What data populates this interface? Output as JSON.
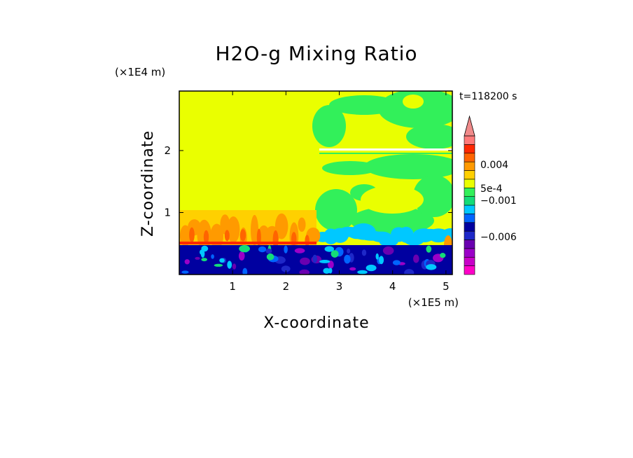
{
  "chart_data": {
    "type": "heatmap",
    "title": "H2O-g Mixing Ratio",
    "xlabel": "X-coordinate",
    "ylabel": "Z-coordinate",
    "x_unit_label": "(×1E5 m)",
    "y_unit_label": "(×1E4 m)",
    "time_label": "t=118200 s",
    "xlim": [
      0,
      5.12
    ],
    "ylim": [
      0,
      2.96
    ],
    "x_ticks": [
      1,
      2,
      3,
      4,
      5
    ],
    "y_ticks": [
      1,
      2
    ],
    "x_tick_labels": [
      "1",
      "2",
      "3",
      "4",
      "5"
    ],
    "y_tick_labels": [
      "1",
      "2"
    ],
    "colorbar": {
      "labels": [
        {
          "value": 0.004,
          "text": "0.004"
        },
        {
          "value": 0.0005,
          "text": "5e-4"
        },
        {
          "value": -0.001,
          "text": "−0.001"
        },
        {
          "value": -0.006,
          "text": "−0.006"
        }
      ],
      "levels": [
        {
          "color": "#ff00c8",
          "from": -0.009,
          "to": -0.008
        },
        {
          "color": "#c800c8",
          "from": -0.008,
          "to": -0.007
        },
        {
          "color": "#9b00c8",
          "from": -0.007,
          "to": -0.006
        },
        {
          "color": "#6a00b0",
          "from": -0.006,
          "to": -0.005
        },
        {
          "color": "#1e28c8",
          "from": -0.005,
          "to": -0.003
        },
        {
          "color": "#0000a0",
          "from": -0.003,
          "to": -0.002
        },
        {
          "color": "#0064ff",
          "from": -0.002,
          "to": -0.001
        },
        {
          "color": "#00c8ff",
          "from": -0.001,
          "to": -0.0005
        },
        {
          "color": "#14dc78",
          "from": -0.0005,
          "to": 0.0
        },
        {
          "color": "#32f05a",
          "from": 0.0,
          "to": 0.0003
        },
        {
          "color": "#eaff00",
          "from": 0.0003,
          "to": 0.0005
        },
        {
          "color": "#ffd000",
          "from": 0.0005,
          "to": 0.001
        },
        {
          "color": "#ff9a00",
          "from": 0.001,
          "to": 0.003
        },
        {
          "color": "#ff6400",
          "from": 0.003,
          "to": 0.005
        },
        {
          "color": "#ff2800",
          "from": 0.005,
          "to": 0.007
        },
        {
          "color": "#ff7a7a",
          "from": 0.007,
          "to": 0.009
        },
        {
          "color": "#f08a8a",
          "from": 0.009,
          "to": null
        }
      ]
    }
  }
}
